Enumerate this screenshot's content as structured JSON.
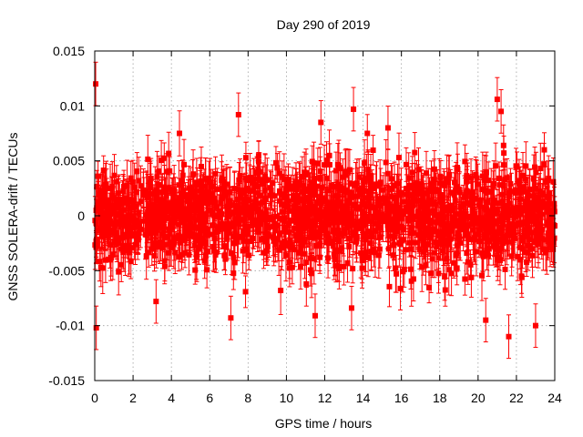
{
  "chart_data": {
    "type": "scatter",
    "title": "Day 290 of 2019",
    "xlabel": "GPS time / hours",
    "ylabel": "GNSS SOLERA-drift / TECUs",
    "xlim": [
      0,
      24
    ],
    "ylim": [
      -0.015,
      0.015
    ],
    "xticks": [
      0,
      2,
      4,
      6,
      8,
      10,
      12,
      14,
      16,
      18,
      20,
      22,
      24
    ],
    "yticks": [
      -0.015,
      -0.01,
      -0.005,
      0,
      0.005,
      0.01,
      0.015
    ],
    "xtick_labels": [
      "0",
      "2",
      "4",
      "6",
      "8",
      "10",
      "12",
      "14",
      "16",
      "18",
      "20",
      "22",
      "24"
    ],
    "ytick_labels": [
      "-0.015",
      "-0.01",
      "-0.005",
      "0",
      "0.005",
      "0.01",
      "0.015"
    ],
    "grid": true,
    "color": "#ff0000",
    "series_style": "points with y error bars",
    "notable_points": [
      {
        "x": 0.05,
        "y": 0.012
      },
      {
        "x": 0.08,
        "y": -0.0102
      },
      {
        "x": 7.5,
        "y": 0.0092
      },
      {
        "x": 13.5,
        "y": 0.0097
      },
      {
        "x": 3.2,
        "y": -0.0078
      },
      {
        "x": 7.1,
        "y": -0.0093
      },
      {
        "x": 11.5,
        "y": -0.0091
      },
      {
        "x": 13.4,
        "y": -0.0084
      },
      {
        "x": 21.0,
        "y": 0.0106
      },
      {
        "x": 21.2,
        "y": 0.0095
      },
      {
        "x": 21.6,
        "y": -0.011
      },
      {
        "x": 20.4,
        "y": -0.0095
      },
      {
        "x": 23.0,
        "y": -0.01
      },
      {
        "x": 15.3,
        "y": 0.008
      },
      {
        "x": 11.8,
        "y": 0.0085
      }
    ],
    "bulk_distribution": {
      "x_range": [
        0,
        24
      ],
      "y_mean": 0,
      "y_std": 0.0022,
      "typical_error": 0.0018
    }
  }
}
